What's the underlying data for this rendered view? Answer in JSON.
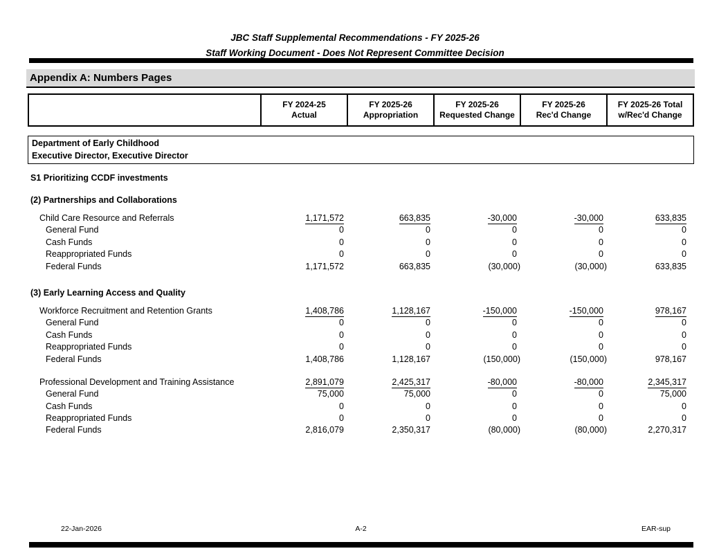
{
  "header": {
    "title_line1": "JBC Staff Supplemental Recommendations - FY 2025-26",
    "title_line2": "Staff Working Document - Does Not Represent Committee Decision",
    "appendix_title": "Appendix A: Numbers Pages"
  },
  "table": {
    "columns": [
      {
        "line1": "FY 2024-25",
        "line2": "Actual"
      },
      {
        "line1": "FY 2025-26",
        "line2": "Appropriation"
      },
      {
        "line1": "FY 2025-26",
        "line2": "Requested Change"
      },
      {
        "line1": "FY 2025-26",
        "line2": "Rec'd Change"
      },
      {
        "line1": "FY 2025-26 Total",
        "line2": "w/Rec'd Change"
      }
    ]
  },
  "department": {
    "line1": "Department of Early Childhood",
    "line2": "Executive Director, Executive Director"
  },
  "supplemental_title": "S1 Prioritizing CCDF investments",
  "sections": [
    {
      "heading": "(2) Partnerships and Collaborations",
      "items": [
        {
          "name": "Child Care Resource and Referrals",
          "totals": [
            "1,171,572",
            "663,835",
            "-30,000",
            "-30,000",
            "633,835"
          ],
          "funds": [
            {
              "name": "General Fund",
              "values": [
                "0",
                "0",
                "0",
                "0",
                "0"
              ]
            },
            {
              "name": "Cash Funds",
              "values": [
                "0",
                "0",
                "0",
                "0",
                "0"
              ]
            },
            {
              "name": "Reappropriated Funds",
              "values": [
                "0",
                "0",
                "0",
                "0",
                "0"
              ]
            },
            {
              "name": "Federal Funds",
              "values": [
                "1,171,572",
                "663,835",
                "(30,000)",
                "(30,000)",
                "633,835"
              ]
            }
          ]
        }
      ]
    },
    {
      "heading": "(3) Early Learning Access and Quality",
      "items": [
        {
          "name": "Workforce Recruitment and Retention Grants",
          "totals": [
            "1,408,786",
            "1,128,167",
            "-150,000",
            "-150,000",
            "978,167"
          ],
          "funds": [
            {
              "name": "General Fund",
              "values": [
                "0",
                "0",
                "0",
                "0",
                "0"
              ]
            },
            {
              "name": "Cash Funds",
              "values": [
                "0",
                "0",
                "0",
                "0",
                "0"
              ]
            },
            {
              "name": "Reappropriated Funds",
              "values": [
                "0",
                "0",
                "0",
                "0",
                "0"
              ]
            },
            {
              "name": "Federal Funds",
              "values": [
                "1,408,786",
                "1,128,167",
                "(150,000)",
                "(150,000)",
                "978,167"
              ]
            }
          ]
        },
        {
          "name": "Professional Development and Training Assistance",
          "totals": [
            "2,891,079",
            "2,425,317",
            "-80,000",
            "-80,000",
            "2,345,317"
          ],
          "funds": [
            {
              "name": "General Fund",
              "values": [
                "75,000",
                "75,000",
                "0",
                "0",
                "75,000"
              ]
            },
            {
              "name": "Cash Funds",
              "values": [
                "0",
                "0",
                "0",
                "0",
                "0"
              ]
            },
            {
              "name": "Reappropriated Funds",
              "values": [
                "0",
                "0",
                "0",
                "0",
                "0"
              ]
            },
            {
              "name": "Federal Funds",
              "values": [
                "2,816,079",
                "2,350,317",
                "(80,000)",
                "(80,000)",
                "2,270,317"
              ]
            }
          ]
        }
      ]
    }
  ],
  "footer": {
    "date": "22-Jan-2026",
    "page": "A-2",
    "doc_code": "EAR-sup"
  },
  "colors": {
    "appendix_bar_bg": "#d9d9d9",
    "rule": "#000000",
    "text": "#000000"
  }
}
